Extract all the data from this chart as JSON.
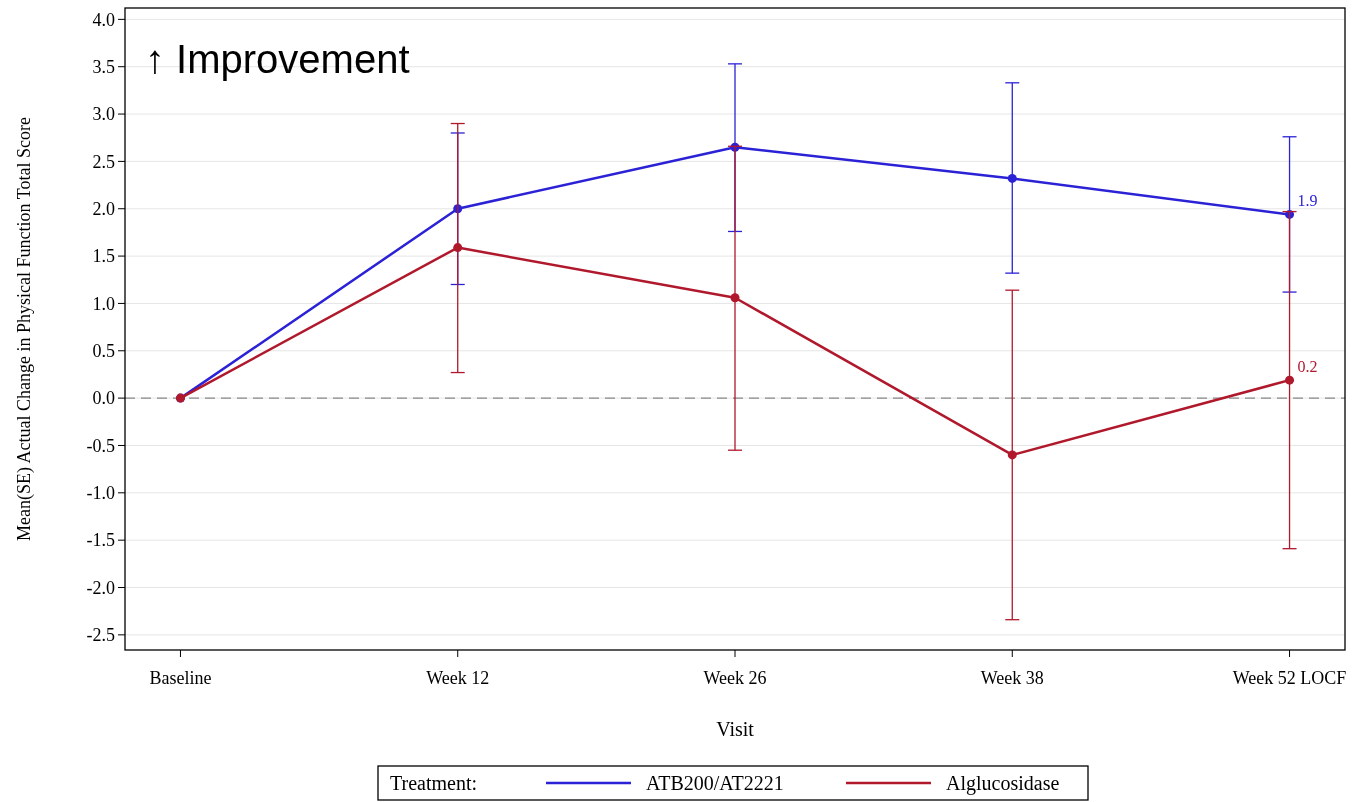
{
  "chart_data": {
    "type": "line",
    "xlabel": "Visit",
    "ylabel": "Mean(SE) Actual Change in Physical Function Total Score",
    "legend_title": "Treatment:",
    "categories": [
      "Baseline",
      "Week 12",
      "Week 26",
      "Week 38",
      "Week 52 LOCF"
    ],
    "ylim": [
      -2.66,
      4.12
    ],
    "yticks": [
      {
        "value": 4,
        "label": "4.0"
      },
      {
        "value": 3.5,
        "label": "3.5"
      },
      {
        "value": 3,
        "label": "3.0"
      },
      {
        "value": 2.5,
        "label": "2.5"
      },
      {
        "value": 2,
        "label": "2.0"
      },
      {
        "value": 1.5,
        "label": "1.5"
      },
      {
        "value": 1,
        "label": "1.0"
      },
      {
        "value": 0.5,
        "label": "0.5"
      },
      {
        "value": 0,
        "label": "0.0"
      },
      {
        "value": -0.5,
        "label": "-0.5"
      },
      {
        "value": -1,
        "label": "-1.0"
      },
      {
        "value": -1.5,
        "label": "-1.5"
      },
      {
        "value": -2,
        "label": "-2.0"
      },
      {
        "value": -2.5,
        "label": "-2.5"
      }
    ],
    "grid": "y",
    "legend": "bottom",
    "marker": "circle",
    "line_style": "solid",
    "series": [
      {
        "name": "ATB200/AT2221",
        "color": "#2b22d6",
        "values": [
          0,
          2.0,
          2.65,
          2.32,
          1.94
        ],
        "errors": [
          null,
          [
            1.2,
            2.8
          ],
          [
            1.76,
            3.53
          ],
          [
            1.32,
            3.33
          ],
          [
            1.12,
            2.76
          ]
        ],
        "value_labels": [
          null,
          null,
          null,
          null,
          "1.9"
        ]
      },
      {
        "name": "Alglucosidase",
        "color": "#b0182c",
        "values": [
          0,
          1.59,
          1.06,
          -0.6,
          0.19
        ],
        "errors": [
          null,
          [
            0.27,
            2.9
          ],
          [
            -0.55,
            2.66
          ],
          [
            -2.34,
            1.14
          ],
          [
            -1.59,
            1.97
          ]
        ],
        "value_labels": [
          null,
          null,
          null,
          null,
          "0.2"
        ]
      }
    ],
    "ref_lines": [
      {
        "axis": "y",
        "value": 0,
        "color": "#888888",
        "line_style": "dashed"
      }
    ],
    "annotations": [
      "↑ Improvement"
    ]
  }
}
